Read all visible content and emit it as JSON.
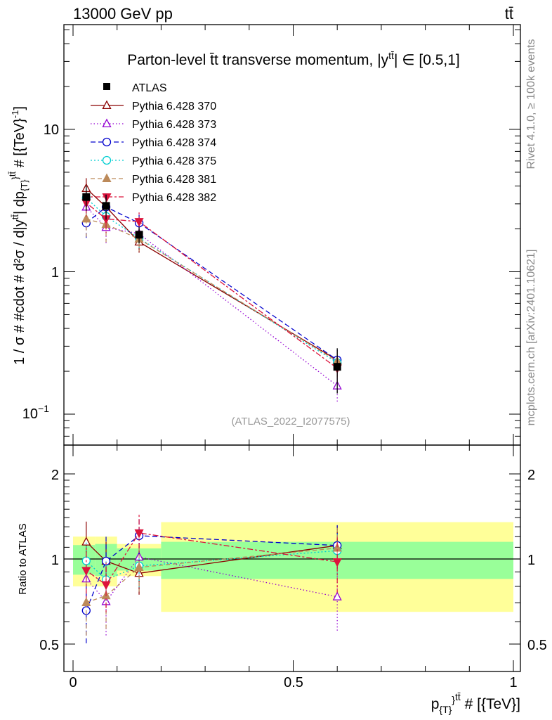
{
  "header": {
    "left": "13000 GeV pp",
    "right": "tt̄"
  },
  "side_labels": {
    "rivet": "Rivet 4.1.0, ≥ 100k events",
    "mcplots": "mcplots.cern.ch [arXiv:2401.10621]"
  },
  "chart_data": {
    "type": "scatter",
    "title": "Parton-level t̄t transverse momentum, |y^{tt̄}| ∈ [0.5,1]",
    "title_main": "Parton-level t̄t transverse momentum, |y",
    "title_sup": "tt̄",
    "title_tail": "| ∈ [0.5,1]",
    "analysis_id": "(ATLAS_2022_I2077575)",
    "xlabel": "p_{T}^{tt̄} # [{TeV}]",
    "xlabel_main": "p",
    "xlabel_sub": "{T}",
    "xlabel_sup": "}",
    "xlabel_sup2": "tt̄",
    "xlabel_tail": " # [{TeV}]",
    "ylabel": "1 / σ # #cdot # d²σ / d|y^{tt̄}| dp_{T}^{tt̄} # [{TeV}⁻¹]",
    "ylabel_text": "1 / σ # #cdot # d²σ / d|y",
    "ylabel_sup": "tt̄",
    "ylabel_tail": "| dp",
    "ylabel_sub": "{T}",
    "ylabel_sup2": "}",
    "ylabel_sup3": "tt̄",
    "ylabel_end": " # [{TeV}",
    "ylabel_exp": "-1",
    "ylabel_close": "]",
    "ratio_ylabel": "Ratio to ATLAS",
    "xlim": [
      -0.02,
      1.02
    ],
    "ylim": [
      0.062,
      48
    ],
    "yscale": "log",
    "ratio_ylim": [
      0.42,
      2.45
    ],
    "ratio_scale": "log",
    "x_ticks": [
      "0",
      "0.5",
      "1"
    ],
    "y_ticks": [
      "10",
      "1",
      "10"
    ],
    "y_tick_exp": "−1",
    "ratio_ticks": [
      "2",
      "1",
      "0.5"
    ],
    "bins": [
      [
        0.0,
        0.05
      ],
      [
        0.05,
        0.1
      ],
      [
        0.1,
        0.2
      ],
      [
        0.2,
        1.0
      ]
    ],
    "x": [
      0.03,
      0.075,
      0.15,
      0.6
    ],
    "data": {
      "name": "ATLAS",
      "values": [
        3.35,
        2.9,
        1.82,
        0.215
      ],
      "stat_rel": [
        0.12,
        0.13,
        0.09,
        0.15
      ],
      "total_rel": [
        0.2,
        0.2,
        0.13,
        0.35
      ]
    },
    "series": [
      {
        "name": "Pythia 6.428 370",
        "color": "#8b0000",
        "dash": "",
        "marker": "triangle-up-open",
        "values": [
          3.85,
          2.85,
          1.62,
          0.24
        ],
        "err_rel": [
          0.18,
          0.17,
          0.16,
          0.17
        ]
      },
      {
        "name": "Pythia 6.428 373",
        "color": "#9400d3",
        "dash": "1.5,3",
        "marker": "triangle-up-open",
        "values": [
          2.85,
          2.05,
          1.85,
          0.158
        ],
        "err_rel": [
          0.2,
          0.25,
          0.15,
          0.25
        ]
      },
      {
        "name": "Pythia 6.428 374",
        "color": "#0000cd",
        "dash": "7,4",
        "marker": "circle-open",
        "values": [
          2.2,
          2.85,
          2.2,
          0.24
        ],
        "err_rel": [
          0.24,
          0.22,
          0.14,
          0.18
        ]
      },
      {
        "name": "Pythia 6.428 375",
        "color": "#00ced1",
        "dash": "2,3",
        "marker": "circle-open",
        "values": [
          3.3,
          2.45,
          1.72,
          0.23
        ],
        "err_rel": [
          0.16,
          0.16,
          0.16,
          0.18
        ]
      },
      {
        "name": "Pythia 6.428 381",
        "color": "#bc8a5a",
        "dash": "6,4",
        "marker": "triangle-up-filled",
        "values": [
          2.35,
          2.15,
          1.7,
          0.235
        ],
        "err_rel": [
          0.25,
          0.25,
          0.18,
          0.18
        ]
      },
      {
        "name": "Pythia 6.428 382",
        "color": "#dc143c",
        "dash": "3,3,8,3",
        "marker": "triangle-down-filled",
        "values": [
          3.05,
          2.35,
          2.25,
          0.21
        ],
        "err_rel": [
          0.2,
          0.2,
          0.16,
          0.22
        ]
      }
    ]
  }
}
